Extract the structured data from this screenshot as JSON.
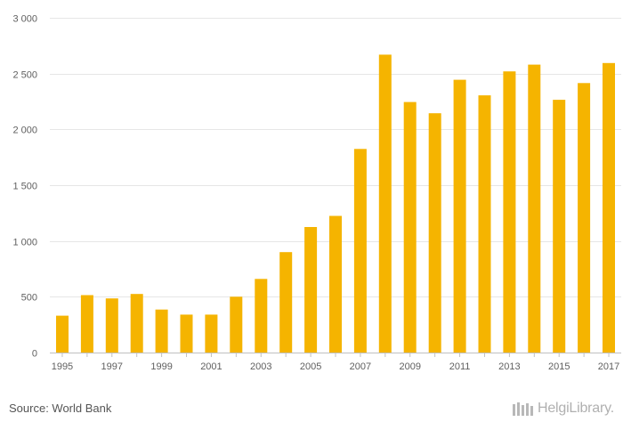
{
  "chart_data": {
    "type": "bar",
    "categories": [
      "1995",
      "1996",
      "1997",
      "1998",
      "1999",
      "2000",
      "2001",
      "2002",
      "2003",
      "2004",
      "2005",
      "2006",
      "2007",
      "2008",
      "2009",
      "2010",
      "2011",
      "2012",
      "2013",
      "2014",
      "2015",
      "2016",
      "2017"
    ],
    "values": [
      330,
      515,
      485,
      525,
      385,
      340,
      340,
      500,
      660,
      900,
      1125,
      1225,
      1825,
      2670,
      2245,
      2145,
      2445,
      2305,
      2520,
      2580,
      2265,
      2415,
      2595
    ],
    "x_tick_labels": [
      "1995",
      "1997",
      "1999",
      "2001",
      "2003",
      "2005",
      "2007",
      "2009",
      "2011",
      "2013",
      "2015",
      "2017"
    ],
    "y_tick_labels": [
      "0",
      "500",
      "1 000",
      "1 500",
      "2 000",
      "2 500",
      "3 000"
    ],
    "ylim": [
      0,
      3000
    ],
    "y_step": 500,
    "grid": true,
    "bar_color": "#f5b400",
    "title": "",
    "xlabel": "",
    "ylabel": ""
  },
  "footer": {
    "source": "Source: World Bank",
    "logo_text": "HelgiLibrary."
  }
}
